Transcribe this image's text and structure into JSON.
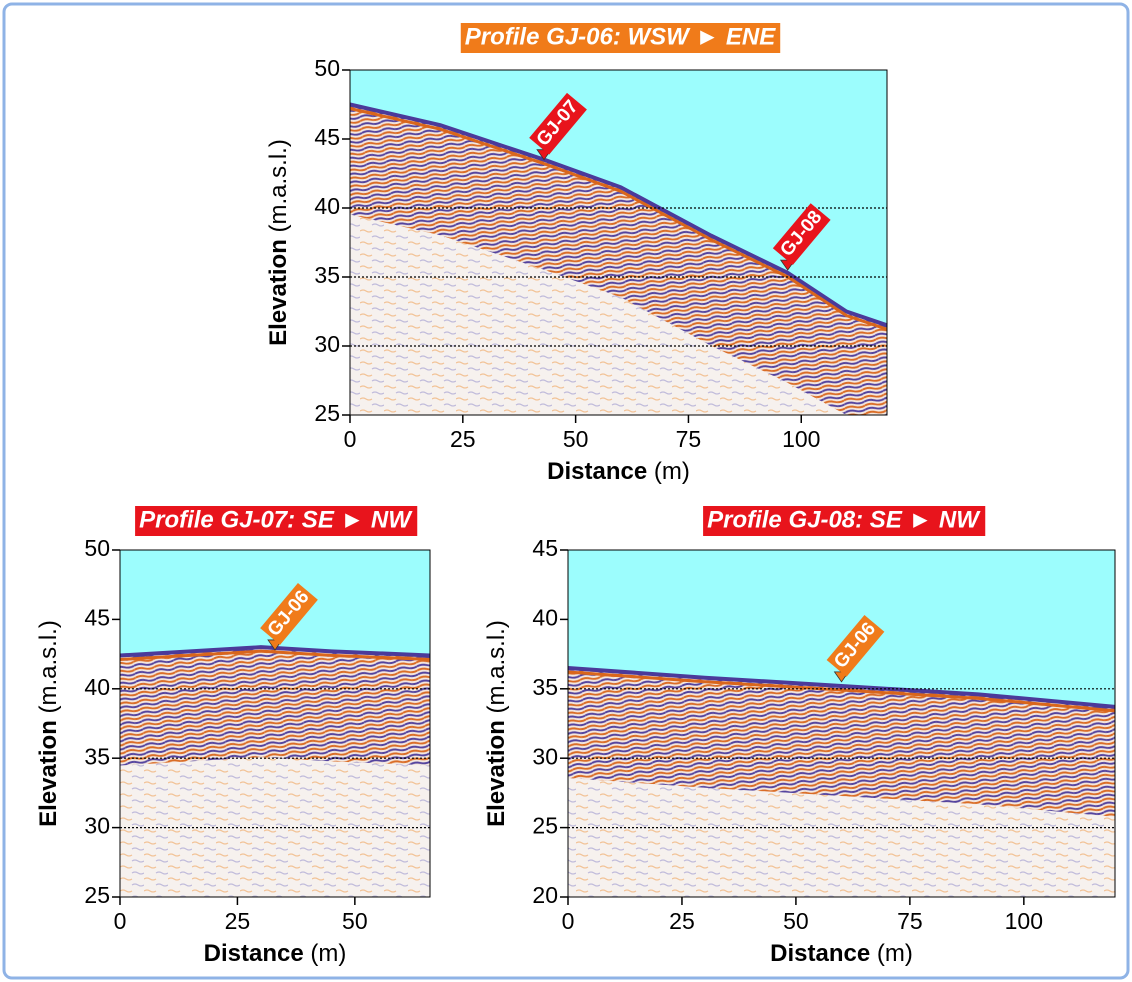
{
  "chart_data": [
    {
      "type": "line",
      "title": "Profile GJ-06: WSW ► ENE",
      "title_color": "#f07b1a",
      "xlabel": "Distance",
      "xunit": "(m)",
      "ylabel": "Elevation",
      "yunit": "(m.a.s.l.)",
      "xlim": [
        0,
        119
      ],
      "ylim": [
        25,
        50
      ],
      "xticks": [
        0,
        25,
        50,
        75,
        100
      ],
      "yticks": [
        25,
        30,
        35,
        40,
        45,
        50
      ],
      "grid_lines": [
        30,
        35,
        40
      ],
      "x": [
        0,
        20,
        43,
        60,
        80,
        97,
        110,
        119
      ],
      "values": [
        47.5,
        46,
        43.5,
        41.5,
        38,
        35.3,
        32.5,
        31.5
      ],
      "markers": [
        {
          "label": "GJ-07",
          "x": 43,
          "y": 43.5,
          "color": "#e8141c"
        },
        {
          "label": "GJ-08",
          "x": 97,
          "y": 35.5,
          "color": "#e8141c"
        }
      ]
    },
    {
      "type": "line",
      "title": "Profile GJ-07: SE ► NW",
      "title_color": "#e8141c",
      "xlabel": "Distance",
      "xunit": "(m)",
      "ylabel": "Elevation",
      "yunit": "(m.a.s.l.)",
      "xlim": [
        0,
        66
      ],
      "ylim": [
        25,
        50
      ],
      "xticks": [
        0,
        25,
        50
      ],
      "yticks": [
        25,
        30,
        35,
        40,
        45,
        50
      ],
      "grid_lines": [
        30,
        35,
        40
      ],
      "x": [
        0,
        15,
        30,
        45,
        66
      ],
      "values": [
        42.4,
        42.7,
        43,
        42.7,
        42.4
      ],
      "markers": [
        {
          "label": "GJ-06",
          "x": 33,
          "y": 42.8,
          "color": "#f07b1a"
        }
      ]
    },
    {
      "type": "line",
      "title": "Profile GJ-08: SE ► NW",
      "title_color": "#e8141c",
      "xlabel": "Distance",
      "xunit": "(m)",
      "ylabel": "Elevation",
      "yunit": "(m.a.s.l.)",
      "xlim": [
        0,
        120
      ],
      "ylim": [
        20,
        45
      ],
      "xticks": [
        0,
        25,
        50,
        75,
        100
      ],
      "yticks": [
        20,
        25,
        30,
        35,
        40,
        45
      ],
      "grid_lines": [
        25,
        30,
        35
      ],
      "x": [
        0,
        30,
        60,
        90,
        120
      ],
      "values": [
        36.5,
        35.8,
        35.2,
        34.6,
        33.7
      ],
      "markers": [
        {
          "label": "GJ-06",
          "x": 60,
          "y": 35.5,
          "color": "#f07b1a"
        }
      ]
    }
  ]
}
